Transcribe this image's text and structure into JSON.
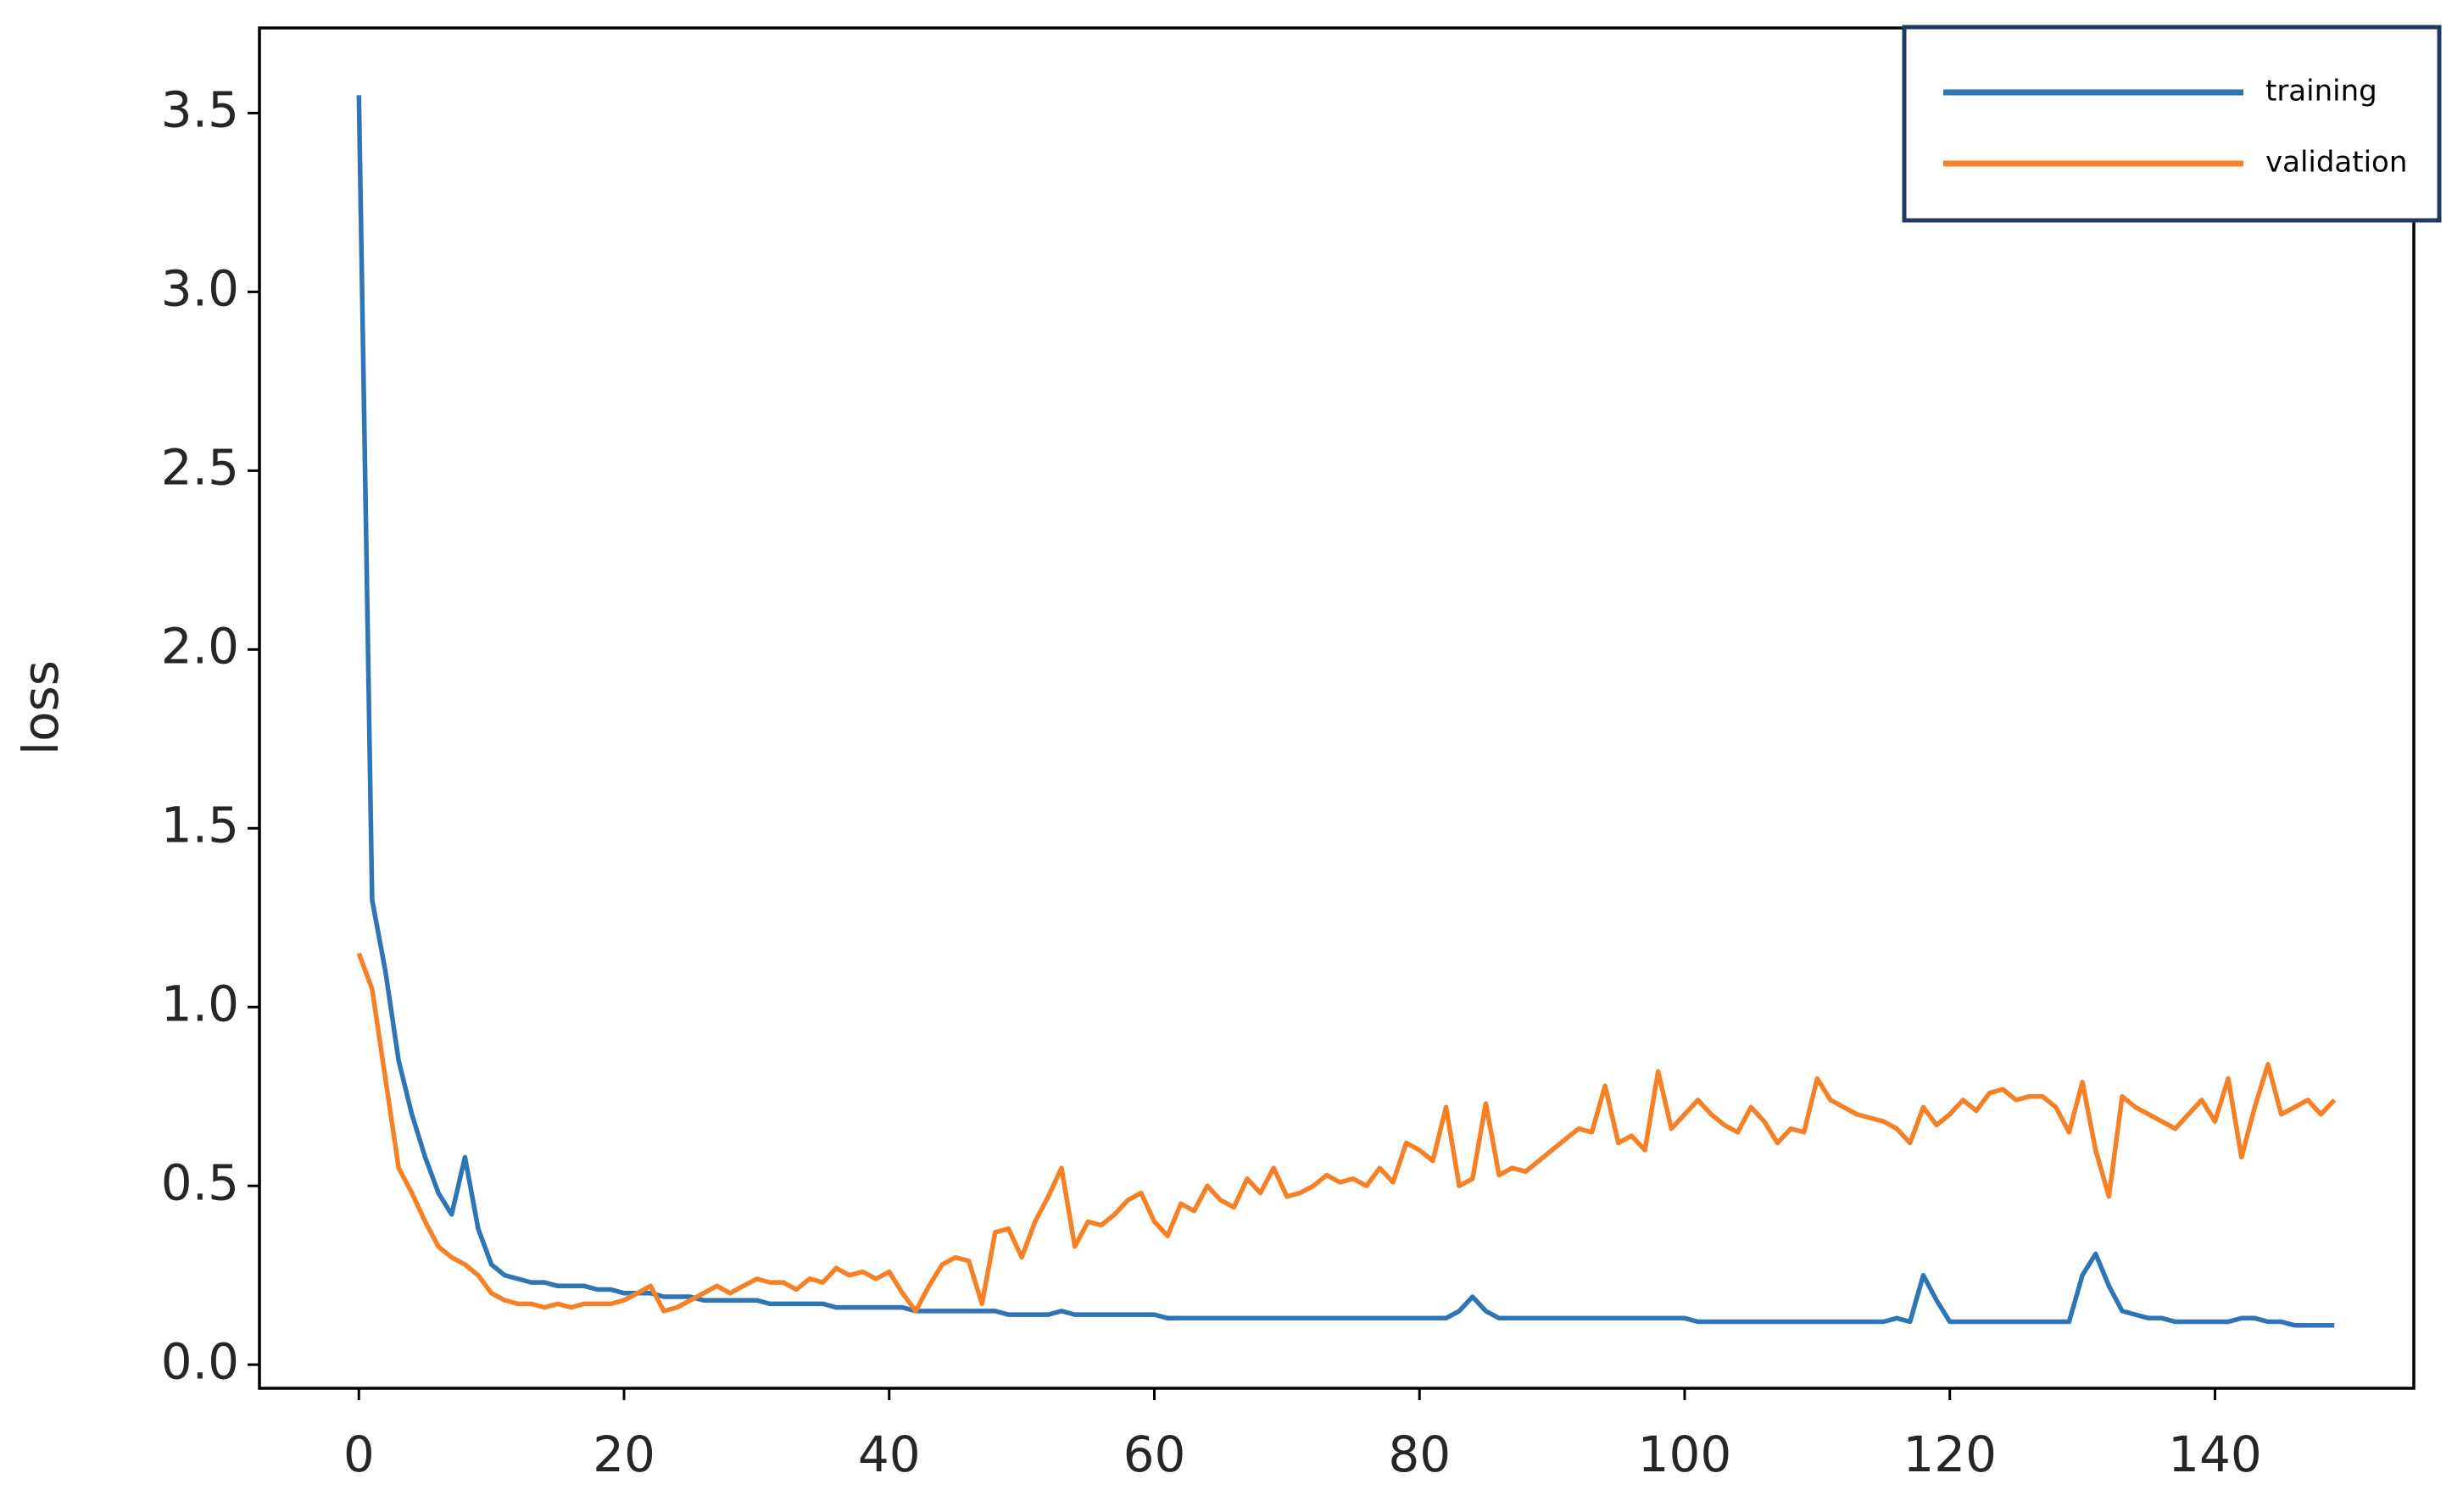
{
  "chart_data": {
    "type": "line",
    "y_label": "loss",
    "x": [
      0,
      1,
      2,
      3,
      4,
      5,
      6,
      7,
      8,
      9,
      10,
      11,
      12,
      13,
      14,
      15,
      16,
      17,
      18,
      19,
      20,
      21,
      22,
      23,
      24,
      25,
      26,
      27,
      28,
      29,
      30,
      31,
      32,
      33,
      34,
      35,
      36,
      37,
      38,
      39,
      40,
      41,
      42,
      43,
      44,
      45,
      46,
      47,
      48,
      49,
      50,
      51,
      52,
      53,
      54,
      55,
      56,
      57,
      58,
      59,
      60,
      61,
      62,
      63,
      64,
      65,
      66,
      67,
      68,
      69,
      70,
      71,
      72,
      73,
      74,
      75,
      76,
      77,
      78,
      79,
      80,
      81,
      82,
      83,
      84,
      85,
      86,
      87,
      88,
      89,
      90,
      91,
      92,
      93,
      94,
      95,
      96,
      97,
      98,
      99,
      100,
      101,
      102,
      103,
      104,
      105,
      106,
      107,
      108,
      109,
      110,
      111,
      112,
      113,
      114,
      115,
      116,
      117,
      118,
      119,
      120,
      121,
      122,
      123,
      124,
      125,
      126,
      127,
      128,
      129,
      130,
      131,
      132,
      133,
      134,
      135,
      136,
      137,
      138,
      139,
      140,
      141,
      142,
      143,
      144,
      145,
      146,
      147,
      148,
      149
    ],
    "series": [
      {
        "name": "training",
        "color": "#2e75b6",
        "values": [
          3.55,
          1.3,
          1.1,
          0.85,
          0.7,
          0.58,
          0.48,
          0.42,
          0.58,
          0.38,
          0.28,
          0.25,
          0.24,
          0.23,
          0.23,
          0.22,
          0.22,
          0.22,
          0.21,
          0.21,
          0.2,
          0.2,
          0.2,
          0.19,
          0.19,
          0.19,
          0.18,
          0.18,
          0.18,
          0.18,
          0.18,
          0.17,
          0.17,
          0.17,
          0.17,
          0.17,
          0.16,
          0.16,
          0.16,
          0.16,
          0.16,
          0.16,
          0.15,
          0.15,
          0.15,
          0.15,
          0.15,
          0.15,
          0.15,
          0.14,
          0.14,
          0.14,
          0.14,
          0.15,
          0.14,
          0.14,
          0.14,
          0.14,
          0.14,
          0.14,
          0.14,
          0.13,
          0.13,
          0.13,
          0.13,
          0.13,
          0.13,
          0.13,
          0.13,
          0.13,
          0.13,
          0.13,
          0.13,
          0.13,
          0.13,
          0.13,
          0.13,
          0.13,
          0.13,
          0.13,
          0.13,
          0.13,
          0.13,
          0.15,
          0.19,
          0.15,
          0.13,
          0.13,
          0.13,
          0.13,
          0.13,
          0.13,
          0.13,
          0.13,
          0.13,
          0.13,
          0.13,
          0.13,
          0.13,
          0.13,
          0.13,
          0.12,
          0.12,
          0.12,
          0.12,
          0.12,
          0.12,
          0.12,
          0.12,
          0.12,
          0.12,
          0.12,
          0.12,
          0.12,
          0.12,
          0.12,
          0.13,
          0.12,
          0.25,
          0.18,
          0.12,
          0.12,
          0.12,
          0.12,
          0.12,
          0.12,
          0.12,
          0.12,
          0.12,
          0.12,
          0.25,
          0.31,
          0.22,
          0.15,
          0.14,
          0.13,
          0.13,
          0.12,
          0.12,
          0.12,
          0.12,
          0.12,
          0.13,
          0.13,
          0.12,
          0.12,
          0.11,
          0.11,
          0.11,
          0.11
        ]
      },
      {
        "name": "validation",
        "color": "#f58025",
        "values": [
          1.15,
          1.05,
          0.8,
          0.55,
          0.48,
          0.4,
          0.33,
          0.3,
          0.28,
          0.25,
          0.2,
          0.18,
          0.17,
          0.17,
          0.16,
          0.17,
          0.16,
          0.17,
          0.17,
          0.17,
          0.18,
          0.2,
          0.22,
          0.15,
          0.16,
          0.18,
          0.2,
          0.22,
          0.2,
          0.22,
          0.24,
          0.23,
          0.23,
          0.21,
          0.24,
          0.23,
          0.27,
          0.25,
          0.26,
          0.24,
          0.26,
          0.2,
          0.15,
          0.22,
          0.28,
          0.3,
          0.29,
          0.17,
          0.37,
          0.38,
          0.3,
          0.4,
          0.47,
          0.55,
          0.33,
          0.4,
          0.39,
          0.42,
          0.46,
          0.48,
          0.4,
          0.36,
          0.45,
          0.43,
          0.5,
          0.46,
          0.44,
          0.52,
          0.48,
          0.55,
          0.47,
          0.48,
          0.5,
          0.53,
          0.51,
          0.52,
          0.5,
          0.55,
          0.51,
          0.62,
          0.6,
          0.57,
          0.72,
          0.5,
          0.52,
          0.73,
          0.53,
          0.55,
          0.54,
          0.57,
          0.6,
          0.63,
          0.66,
          0.65,
          0.78,
          0.62,
          0.64,
          0.6,
          0.82,
          0.66,
          0.7,
          0.74,
          0.7,
          0.67,
          0.65,
          0.72,
          0.68,
          0.62,
          0.66,
          0.65,
          0.8,
          0.74,
          0.72,
          0.7,
          0.69,
          0.68,
          0.66,
          0.62,
          0.72,
          0.67,
          0.7,
          0.74,
          0.71,
          0.76,
          0.77,
          0.74,
          0.75,
          0.75,
          0.72,
          0.65,
          0.79,
          0.6,
          0.47,
          0.75,
          0.72,
          0.7,
          0.68,
          0.66,
          0.7,
          0.74,
          0.68,
          0.8,
          0.58,
          0.72,
          0.84,
          0.7,
          0.72,
          0.74,
          0.7,
          0.74
        ]
      }
    ],
    "xlim": [
      -7.5,
      155
    ],
    "ylim": [
      -0.066,
      3.738
    ],
    "xticks": [
      0,
      20,
      40,
      60,
      80,
      100,
      120,
      140
    ],
    "yticks": [
      {
        "value": 0,
        "label": "0.0"
      },
      0.5,
      {
        "value": 1,
        "label": "1.0"
      },
      1.5,
      {
        "value": 2,
        "label": "2.0"
      },
      2.5,
      {
        "value": 3,
        "label": "3.0"
      },
      3.5
    ],
    "legend": "upper right"
  }
}
